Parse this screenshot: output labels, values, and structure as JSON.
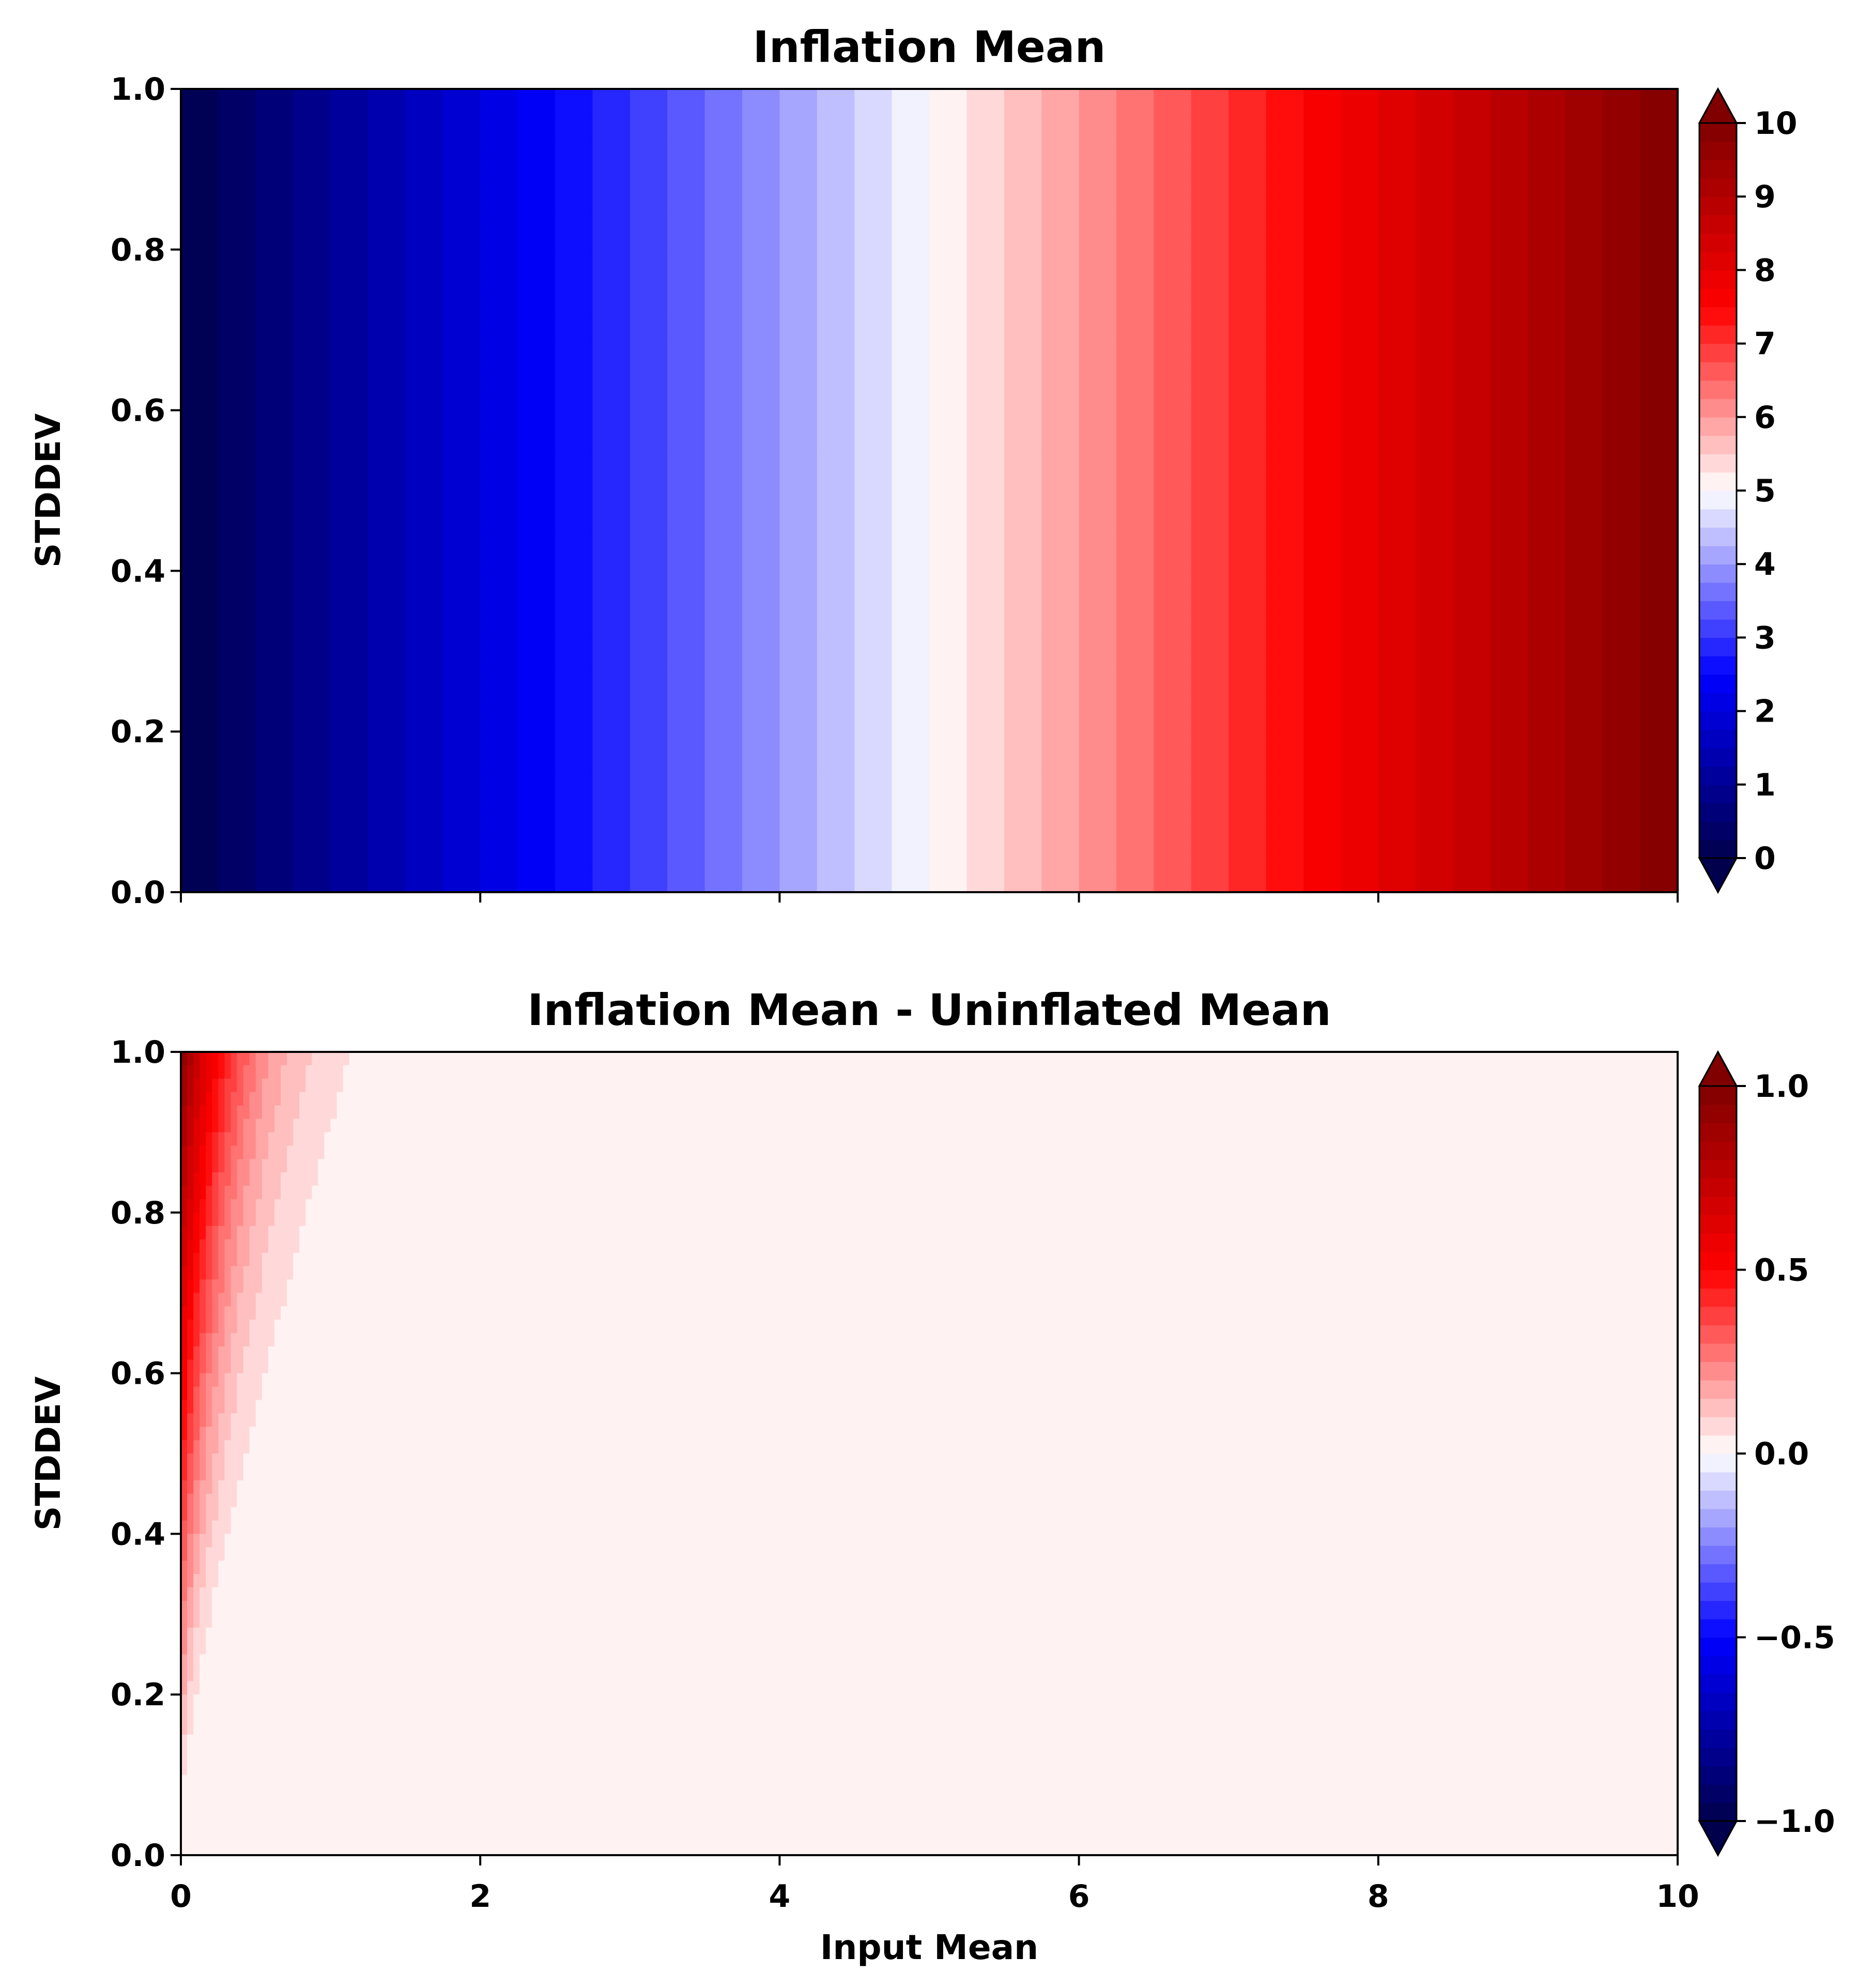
{
  "chart_data": [
    {
      "type": "contour",
      "title": "Inflation Mean",
      "xlabel": "",
      "ylabel": "STDDEV",
      "xlim": [
        0,
        10
      ],
      "ylim": [
        0,
        1
      ],
      "x_ticks": [
        0,
        2,
        4,
        6,
        8,
        10
      ],
      "x_tick_labels": [
        "",
        "",
        "",
        "",
        "",
        ""
      ],
      "y_ticks": [
        0.0,
        0.2,
        0.4,
        0.6,
        0.8,
        1.0
      ],
      "y_tick_labels": [
        "0.0",
        "0.2",
        "0.4",
        "0.6",
        "0.8",
        "1.0"
      ],
      "colormap": "seismic",
      "colorbar": {
        "min": 0,
        "max": 10,
        "extend": "both",
        "levels": 40,
        "ticks": [
          0,
          1,
          2,
          3,
          4,
          5,
          6,
          7,
          8,
          9,
          10
        ],
        "tick_labels": [
          "0",
          "1",
          "2",
          "3",
          "4",
          "5",
          "6",
          "7",
          "8",
          "9",
          "10"
        ]
      },
      "field": "z = input mean, constant along STDDEV (color varies only with x)"
    },
    {
      "type": "contour",
      "title": "Inflation Mean - Uninflated Mean",
      "xlabel": "Input Mean",
      "ylabel": "STDDEV",
      "xlim": [
        0,
        10
      ],
      "ylim": [
        0,
        1
      ],
      "x_ticks": [
        0,
        2,
        4,
        6,
        8,
        10
      ],
      "x_tick_labels": [
        "0",
        "2",
        "4",
        "6",
        "8",
        "10"
      ],
      "y_ticks": [
        0.0,
        0.2,
        0.4,
        0.6,
        0.8,
        1.0
      ],
      "y_tick_labels": [
        "0.0",
        "0.2",
        "0.4",
        "0.6",
        "0.8",
        "1.0"
      ],
      "colormap": "seismic",
      "colorbar": {
        "min": -1,
        "max": 1,
        "extend": "both",
        "levels": 40,
        "ticks": [
          -1.0,
          -0.5,
          0.0,
          0.5,
          1.0
        ],
        "tick_labels": [
          "−1.0",
          "−0.5",
          "0.0",
          "0.5",
          "1.0"
        ]
      },
      "field": "difference ~ 0.95 at (0, 1.0), decays with input mean / stddev; ~0 beyond x = 2.4 at stddev 1.0"
    }
  ]
}
